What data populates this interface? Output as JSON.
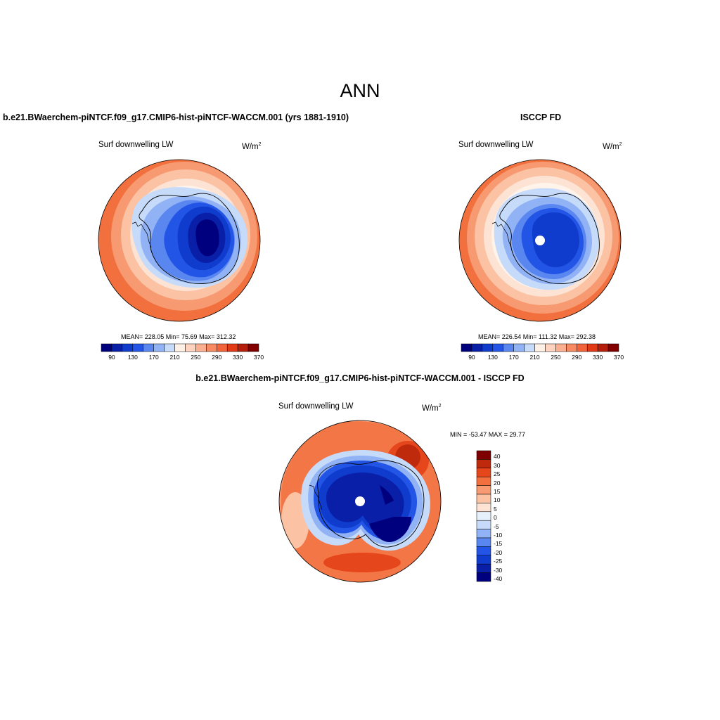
{
  "main_title": "ANN",
  "left_panel": {
    "title": "b.e21.BWaerchem-piNTCF.f09_g17.CMIP6-hist-piNTCF-WACCM.001 (yrs 1881-1910)",
    "variable": "Surf downwelling LW",
    "units_base": "W/m",
    "units_exp": "2",
    "stats": "MEAN= 228.05  Min=  75.69  Max= 312.32"
  },
  "right_panel": {
    "title": "ISCCP FD",
    "variable": "Surf downwelling LW",
    "units_base": "W/m",
    "units_exp": "2",
    "stats": "MEAN= 226.54  Min= 111.32  Max= 292.38"
  },
  "diff_panel": {
    "title": "b.e21.BWaerchem-piNTCF.f09_g17.CMIP6-hist-piNTCF-WACCM.001 - ISCCP FD",
    "variable": "Surf downwelling LW",
    "units_base": "W/m",
    "units_exp": "2",
    "stats": "MIN = -53.47 MAX =  29.77"
  },
  "abs_colorbar": {
    "colors": [
      "#00007f",
      "#0a1fa8",
      "#0f3ccc",
      "#2255e6",
      "#5a86f0",
      "#91b2f5",
      "#c6dbfa",
      "#fff0e6",
      "#fdd3bf",
      "#fbae90",
      "#f78a62",
      "#f2633a",
      "#e03b16",
      "#b51e0b",
      "#820000"
    ],
    "tick_labels": [
      "90",
      "130",
      "170",
      "210",
      "250",
      "290",
      "330",
      "370"
    ]
  },
  "diff_colorbar": {
    "colors": [
      "#00007f",
      "#0a1fa8",
      "#0f3ccc",
      "#2255e6",
      "#5a86f0",
      "#91b2f5",
      "#c6dbfa",
      "#e6f0fb",
      "#fde3d3",
      "#fbc2a4",
      "#f79a72",
      "#f2703e",
      "#e6461b",
      "#c02a0c",
      "#7f0000"
    ],
    "tick_labels": [
      "40",
      "30",
      "25",
      "20",
      "15",
      "10",
      "5",
      "0",
      "-5",
      "-10",
      "-15",
      "-20",
      "-25",
      "-30",
      "-40"
    ]
  }
}
